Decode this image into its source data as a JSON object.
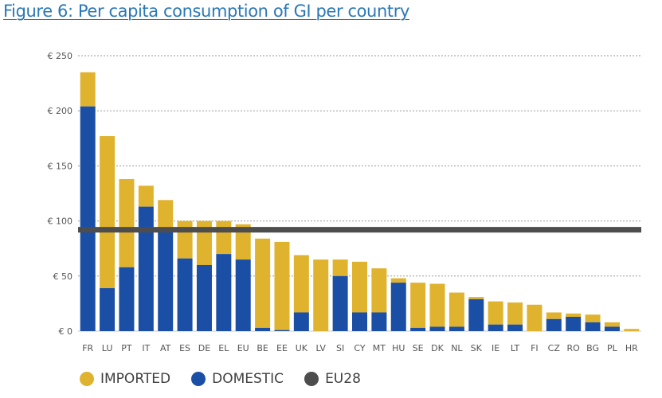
{
  "title": "Figure 6: Per capita consumption of GI per country",
  "colors": {
    "imported": "#e0b32f",
    "domestic": "#1b4fa6",
    "eu28": "#4d4d4d",
    "grid": "#9a9a9a"
  },
  "legend": [
    {
      "label": "IMPORTED",
      "color": "#e0b32f"
    },
    {
      "label": "DOMESTIC",
      "color": "#1b4fa6"
    },
    {
      "label": "EU28",
      "color": "#4d4d4d"
    }
  ],
  "chart_data": {
    "type": "bar",
    "stacked": true,
    "title": "Figure 6: Per capita consumption of GI per country",
    "ylim": [
      0,
      250
    ],
    "yticks": [
      0,
      50,
      100,
      150,
      200,
      250
    ],
    "ytick_labels": [
      "€ 0",
      "€ 50",
      "€ 100",
      "€ 150",
      "€ 200",
      "€ 250"
    ],
    "categories": [
      "FR",
      "LU",
      "PT",
      "IT",
      "AT",
      "ES",
      "DE",
      "EL",
      "EU",
      "BE",
      "EE",
      "UK",
      "LV",
      "SI",
      "CY",
      "MT",
      "HU",
      "SE",
      "DK",
      "NL",
      "SK",
      "IE",
      "LT",
      "FI",
      "CZ",
      "RO",
      "BG",
      "PL",
      "HR"
    ],
    "series": [
      {
        "name": "DOMESTIC",
        "values": [
          204,
          39,
          58,
          113,
          91,
          66,
          60,
          70,
          65,
          3,
          1,
          17,
          0,
          50,
          17,
          17,
          44,
          3,
          4,
          4,
          29,
          6,
          6,
          0,
          11,
          13,
          8,
          4,
          0
        ]
      },
      {
        "name": "IMPORTED",
        "values": [
          31,
          138,
          80,
          19,
          28,
          34,
          40,
          30,
          32,
          81,
          80,
          52,
          65,
          15,
          46,
          40,
          4,
          41,
          39,
          31,
          2,
          21,
          20,
          24,
          6,
          3,
          7,
          4,
          2
        ]
      }
    ],
    "reference_line": {
      "name": "EU28",
      "value": 92
    },
    "grid": true,
    "legend_position": "bottom-left"
  }
}
